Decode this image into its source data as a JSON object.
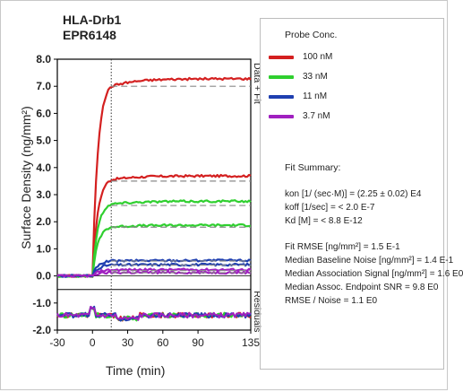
{
  "chart_data": {
    "type": "line",
    "title": "HLA-Drb1",
    "subtitle": "EPR6148",
    "xlabel": "Time (min)",
    "ylabel": "Surface Density (ng/mm²)",
    "xlim": [
      -30,
      135
    ],
    "ylim": [
      -2.0,
      8.0
    ],
    "x_ticks": [
      -30,
      0,
      30,
      60,
      90,
      135
    ],
    "y_ticks": [
      "-2.0",
      "-1.0",
      "0.0",
      "1.0",
      "2.0",
      "3.0",
      "4.0",
      "5.0",
      "6.0",
      "7.0",
      "8.0"
    ],
    "right_labels": [
      "Data + Fit",
      "Residuals"
    ],
    "injection_end_x": 16,
    "legend_title": "Probe Conc.",
    "series": [
      {
        "name": "100 nM",
        "color": "#d42020",
        "plateau": 7.0,
        "fit": 7.0
      },
      {
        "name": "33 nM",
        "color": "#2fcf2f",
        "plateau": 2.65,
        "fit": 2.6
      },
      {
        "name": "11 nM",
        "color": "#1f3fb0",
        "plateau": 0.55,
        "fit": 0.55
      },
      {
        "name": "3.7 nM",
        "color": "#a020c0",
        "plateau": 0.22,
        "fit": 0.2
      }
    ],
    "extra_replicates": [
      {
        "series": "100 nM",
        "plateau": 3.55,
        "fit": 3.5
      },
      {
        "series": "33 nM",
        "plateau": 1.8,
        "fit": 1.8
      },
      {
        "series": "11 nM",
        "plateau": 0.4,
        "fit": 0.4
      },
      {
        "series": "3.7 nM",
        "plateau": 0.12,
        "fit": 0.12
      }
    ]
  },
  "fit_summary": {
    "title": "Fit Summary:",
    "lines": [
      "kon  [1/ (sec·M)]  =   (2.25 ± 0.02) E4",
      "koff  [1/sec]  =   < 2.0 E-7",
      "Kd  [M]  =   < 8.8 E-12",
      "Fit RMSE [ng/mm²]  =   1.5 E-1",
      "Median Baseline Noise [ng/mm²]  =  1.4 E-1",
      "Median Association Signal [ng/mm²]  =  1.6 E0",
      "Median Assoc. Endpoint SNR  =   9.8 E0",
      "RMSE / Noise  =   1.1 E0"
    ]
  },
  "colors": {
    "fit_line": "#8a8a8a",
    "axis": "#000000",
    "frame": "#bdbdbd"
  }
}
